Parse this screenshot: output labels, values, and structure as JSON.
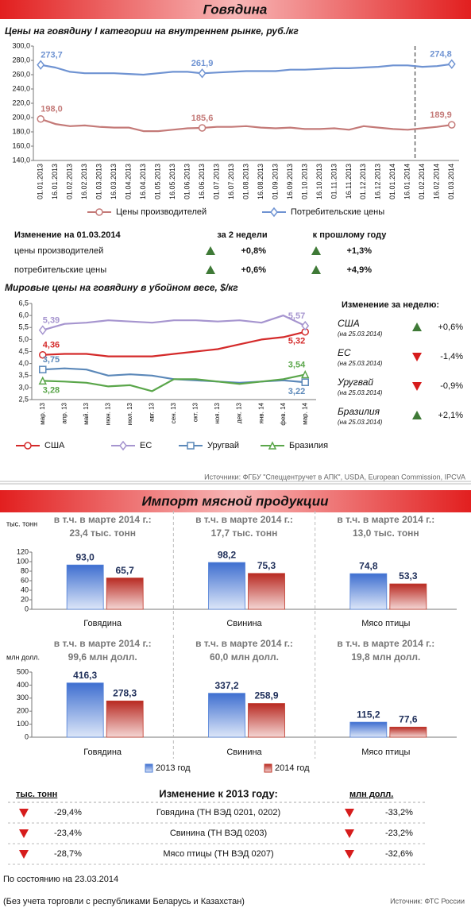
{
  "header": {
    "title": "Говядина"
  },
  "domestic_change": {
    "title": "Изменение на 01.03.2014",
    "columns": [
      "за 2 недели",
      "к прошлому году"
    ],
    "rows": [
      {
        "label": "цены производителей",
        "values": [
          "+0,8%",
          "+1,3%"
        ]
      },
      {
        "label": "потребительские цены",
        "values": [
          "+0,6%",
          "+4,9%"
        ]
      }
    ]
  },
  "world_change": {
    "title": "Изменение за неделю:",
    "rows": [
      {
        "country": "США",
        "date": "(на 25.03.2014)",
        "change": "+0,6%"
      },
      {
        "country": "ЕС",
        "date": "(на 25.03.2014)",
        "change": "-1,4%"
      },
      {
        "country": "Уругвай",
        "date": "(на 25.03.2014)",
        "change": "-0,9%"
      },
      {
        "country": "Бразилия",
        "date": "(на 25.03.2014)",
        "change": "+2,1%"
      }
    ]
  },
  "world_source": "Источники: ФГБУ \"Спеццентручет в АПК\", USDA, European Commission, IPCVA",
  "import_header": {
    "title": "Импорт мясной продукции"
  },
  "import_change": {
    "left_unit": "тыс. тонн",
    "title": "Изменение к 2013 году:",
    "right_unit": "млн долл.",
    "rows": [
      {
        "left": "-29,4%",
        "label": "Говядина (ТН ВЭД 0201, 0202)",
        "right": "-33,2%"
      },
      {
        "left": "-23,4%",
        "label": "Свинина (ТН ВЭД 0203)",
        "right": "-23,2%"
      },
      {
        "left": "-28,7%",
        "label": "Мясо птицы (ТН ВЭД 0207)",
        "right": "-32,6%"
      }
    ]
  },
  "footer": {
    "status": "По состоянию на  23.03.2014",
    "note": "(Без учета торговли с республиками Беларусь и Казахстан)",
    "source": "Источник: ФТС России"
  },
  "chart_data": [
    {
      "type": "line",
      "title": "Цены на говядину I категории на внутреннем рынке, руб./кг",
      "categories": [
        "01.01.2013",
        "16.01.2013",
        "01.02.2013",
        "16.02.2013",
        "01.03.2013",
        "16.03.2013",
        "01.04.2013",
        "16.04.2013",
        "01.05.2013",
        "16.05.2013",
        "01.06.2013",
        "16.06.2013",
        "01.07.2013",
        "16.07.2013",
        "01.08.2013",
        "16.08.2013",
        "01.09.2013",
        "16.09.2013",
        "01.10.2013",
        "16.10.2013",
        "01.11.2013",
        "16.11.2013",
        "01.12.2013",
        "16.12.2013",
        "01.01.2014",
        "16.01.2014",
        "01.02.2014",
        "16.02.2014",
        "01.03.2014"
      ],
      "series": [
        {
          "name": "Цены производителей",
          "color": "#c47a78",
          "marker": "circle",
          "values": [
            198.0,
            191,
            188,
            189,
            187,
            186,
            186,
            181,
            181,
            183,
            185,
            185.6,
            187,
            187,
            188,
            186,
            185,
            186,
            184,
            184,
            185,
            183,
            188,
            186,
            184,
            183,
            185,
            187,
            189.9
          ],
          "value_labels": [
            "198,0",
            null,
            null,
            null,
            null,
            null,
            null,
            null,
            null,
            null,
            null,
            "185,6",
            null,
            null,
            null,
            null,
            null,
            null,
            null,
            null,
            null,
            null,
            null,
            null,
            null,
            null,
            null,
            null,
            "189,9"
          ]
        },
        {
          "name": "Потребительские цены",
          "color": "#6f93d2",
          "marker": "diamond",
          "values": [
            273.7,
            270,
            264,
            262,
            262,
            262,
            261,
            260,
            262,
            264,
            264,
            261.9,
            263,
            264,
            265,
            265,
            265,
            267,
            267,
            268,
            269,
            269,
            270,
            271,
            273,
            273,
            271,
            272,
            274.8
          ],
          "value_labels": [
            "273,7",
            null,
            null,
            null,
            null,
            null,
            null,
            null,
            null,
            null,
            null,
            "261,9",
            null,
            null,
            null,
            null,
            null,
            null,
            null,
            null,
            null,
            null,
            null,
            null,
            null,
            null,
            null,
            null,
            "274,8"
          ]
        }
      ],
      "ylim": [
        140,
        300
      ],
      "yticks": [
        {
          "value": 140,
          "label": "140,0"
        },
        {
          "value": 160,
          "label": "160,0"
        },
        {
          "value": 180,
          "label": "180,0"
        },
        {
          "value": 200,
          "label": "200,0"
        },
        {
          "value": 220,
          "label": "220,0"
        },
        {
          "value": 240,
          "label": "240,0"
        },
        {
          "value": 260,
          "label": "260,0"
        },
        {
          "value": 280,
          "label": "280,0"
        },
        {
          "value": 300,
          "label": "300,0"
        }
      ],
      "grid": false
    },
    {
      "type": "line",
      "title": "Мировые цены на говядину в убойном весе, $/кг",
      "categories": [
        "мар. 13",
        "апр. 13",
        "май. 13",
        "июн. 13",
        "июл. 13",
        "авг. 13",
        "сен. 13",
        "окт. 13",
        "ноя. 13",
        "дек. 13",
        "янв. 14",
        "фев. 14",
        "мар. 14"
      ],
      "series": [
        {
          "name": "США",
          "color": "#d42a2a",
          "marker": "circle",
          "values": [
            4.36,
            4.4,
            4.4,
            4.3,
            4.3,
            4.3,
            4.4,
            4.5,
            4.6,
            4.8,
            5.0,
            5.1,
            5.32
          ],
          "value_labels": [
            "4,36",
            null,
            null,
            null,
            null,
            null,
            null,
            null,
            null,
            null,
            null,
            null,
            "5,32"
          ]
        },
        {
          "name": "ЕС",
          "color": "#a695cf",
          "marker": "diamond",
          "values": [
            5.39,
            5.65,
            5.7,
            5.8,
            5.75,
            5.7,
            5.8,
            5.8,
            5.75,
            5.8,
            5.7,
            6.0,
            5.57
          ],
          "value_labels": [
            "5,39",
            null,
            null,
            null,
            null,
            null,
            null,
            null,
            null,
            null,
            null,
            null,
            "5,57"
          ]
        },
        {
          "name": "Уругвай",
          "color": "#5b88b9",
          "marker": "square",
          "values": [
            3.75,
            3.8,
            3.75,
            3.5,
            3.55,
            3.5,
            3.35,
            3.3,
            3.25,
            3.2,
            3.25,
            3.3,
            3.22
          ],
          "value_labels": [
            "3,75",
            null,
            null,
            null,
            null,
            null,
            null,
            null,
            null,
            null,
            null,
            null,
            "3,22"
          ]
        },
        {
          "name": "Бразилия",
          "color": "#5aa64a",
          "marker": "triangle",
          "values": [
            3.28,
            3.25,
            3.2,
            3.05,
            3.1,
            2.85,
            3.35,
            3.35,
            3.25,
            3.15,
            3.25,
            3.35,
            3.54
          ],
          "value_labels": [
            "3,28",
            null,
            null,
            null,
            null,
            null,
            null,
            null,
            null,
            null,
            null,
            null,
            "3,54"
          ]
        }
      ],
      "ylim": [
        2.5,
        6.5
      ],
      "yticks": [
        {
          "value": 2.5,
          "label": "2,5"
        },
        {
          "value": 3,
          "label": "3,0"
        },
        {
          "value": 3.5,
          "label": "3,5"
        },
        {
          "value": 4,
          "label": "4,0"
        },
        {
          "value": 4.5,
          "label": "4,5"
        },
        {
          "value": 5,
          "label": "5,0"
        },
        {
          "value": 5.5,
          "label": "5,5"
        },
        {
          "value": 6,
          "label": "6,0"
        },
        {
          "value": 6.5,
          "label": "6,5"
        }
      ],
      "grid": false
    },
    {
      "type": "bar",
      "ylabel": "тыс. тонн",
      "categories": [
        "Говядина",
        "Свинина",
        "Мясо птицы"
      ],
      "annotations": [
        {
          "text": "в т.ч. в марте 2014 г.:",
          "value": "23,4 тыс. тонн"
        },
        {
          "text": "в т.ч. в марте 2014 г.:",
          "value": "17,7 тыс. тонн"
        },
        {
          "text": "в т.ч. в марте 2014 г.:",
          "value": "13,0 тыс. тонн"
        }
      ],
      "series": [
        {
          "color": "#4f7fd6",
          "values": [
            93.0,
            98.2,
            74.8
          ],
          "value_labels": [
            "93,0",
            "98,2",
            "74,8"
          ]
        },
        {
          "color": "#c0392b",
          "values": [
            65.7,
            75.3,
            53.3
          ],
          "value_labels": [
            "65,7",
            "75,3",
            "53,3"
          ]
        }
      ],
      "ylim": [
        0,
        120
      ],
      "yticks": [
        0,
        20,
        40,
        60,
        80,
        100,
        120
      ],
      "legend": false
    },
    {
      "type": "bar",
      "ylabel": "млн долл.",
      "categories": [
        "Говядина",
        "Свинина",
        "Мясо птицы"
      ],
      "annotations": [
        {
          "text": "в т.ч. в марте 2014 г.:",
          "value": "99,6 млн долл."
        },
        {
          "text": "в т.ч. в марте 2014 г.:",
          "value": "60,0 млн долл."
        },
        {
          "text": "в т.ч. в марте 2014 г.:",
          "value": "19,8 млн долл."
        }
      ],
      "series": [
        {
          "name": "2013 год",
          "color": "#4f7fd6",
          "values": [
            416.3,
            337.2,
            115.2
          ],
          "value_labels": [
            "416,3",
            "337,2",
            "115,2"
          ]
        },
        {
          "name": "2014 год",
          "color": "#c0392b",
          "values": [
            278.3,
            258.9,
            77.6
          ],
          "value_labels": [
            "278,3",
            "258,9",
            "77,6"
          ]
        }
      ],
      "ylim": [
        0,
        500
      ],
      "yticks": [
        0,
        100,
        200,
        300,
        400,
        500
      ],
      "legend": true
    }
  ]
}
